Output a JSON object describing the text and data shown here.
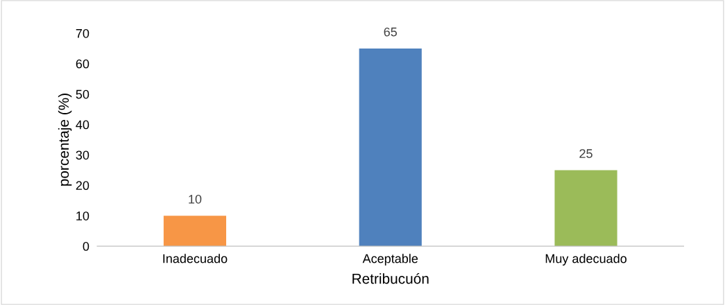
{
  "chart_data": {
    "type": "bar",
    "xlabel": "Retribucuón",
    "ylabel": "porcentaje (%)",
    "categories": [
      "Inadecuado",
      "Aceptable",
      "Muy adecuado"
    ],
    "values": [
      10,
      65,
      25
    ],
    "colors": [
      "#f79646",
      "#4f81bd",
      "#9bbb59"
    ],
    "ylim": [
      0,
      70
    ],
    "yticks": [
      0,
      10,
      20,
      30,
      40,
      50,
      60,
      70
    ],
    "grid": false,
    "data_labels": true
  }
}
